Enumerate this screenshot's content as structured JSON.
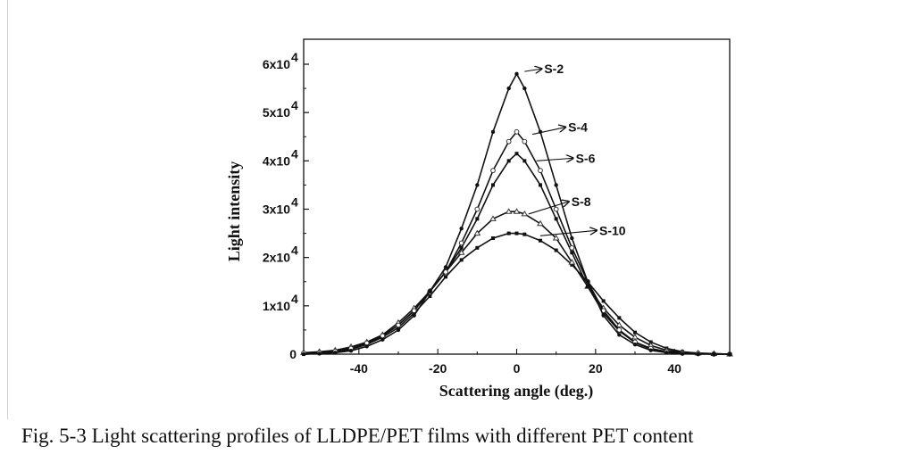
{
  "caption": "Fig. 5-3 Light scattering profiles of LLDPE/PET films with different PET content",
  "chart_data": {
    "type": "line",
    "xlabel": "Scattering angle (deg.)",
    "ylabel": "Light intensity",
    "xlim": [
      -54,
      54
    ],
    "ylim": [
      0,
      65000
    ],
    "x_ticks": [
      {
        "value": -40,
        "label": "-40"
      },
      {
        "value": -20,
        "label": "-20"
      },
      {
        "value": 0,
        "label": "0"
      },
      {
        "value": 20,
        "label": "20"
      },
      {
        "value": 40,
        "label": "40"
      }
    ],
    "y_ticks": [
      {
        "value": 0,
        "label": "0",
        "mantissa": "",
        "exponent": ""
      },
      {
        "value": 10000,
        "label": "1x10^4",
        "mantissa": "1x10",
        "exponent": "4"
      },
      {
        "value": 20000,
        "label": "2x10^4",
        "mantissa": "2x10",
        "exponent": "4"
      },
      {
        "value": 30000,
        "label": "3x10^4",
        "mantissa": "3x10",
        "exponent": "4"
      },
      {
        "value": 40000,
        "label": "4x10^4",
        "mantissa": "4x10",
        "exponent": "4"
      },
      {
        "value": 50000,
        "label": "5x10^4",
        "mantissa": "5x10",
        "exponent": "4"
      },
      {
        "value": 60000,
        "label": "6x10^4",
        "mantissa": "6x10",
        "exponent": "4"
      }
    ],
    "x": [
      -54,
      -50,
      -46,
      -42,
      -38,
      -34,
      -30,
      -26,
      -22,
      -18,
      -14,
      -10,
      -6,
      -2,
      0,
      2,
      6,
      10,
      14,
      18,
      22,
      26,
      30,
      34,
      38,
      42,
      46,
      50,
      54
    ],
    "series": [
      {
        "name": "S-2",
        "marker": "filled-circle",
        "values": [
          0,
          100,
          300,
          700,
          1600,
          3000,
          5000,
          8000,
          13000,
          18000,
          26000,
          35000,
          46000,
          55000,
          58000,
          55000,
          46000,
          35000,
          24000,
          15000,
          8000,
          4000,
          2000,
          800,
          300,
          100,
          0,
          0,
          0
        ]
      },
      {
        "name": "S-4",
        "marker": "open-circle",
        "values": [
          200,
          300,
          600,
          1200,
          2300,
          3800,
          6000,
          9000,
          13000,
          17000,
          23000,
          30000,
          38000,
          44000,
          46000,
          44000,
          38000,
          30000,
          22000,
          15000,
          9000,
          5000,
          2500,
          1200,
          500,
          200,
          100,
          0,
          0
        ]
      },
      {
        "name": "S-6",
        "marker": "filled-square",
        "values": [
          100,
          300,
          600,
          1200,
          2200,
          3800,
          6000,
          9000,
          13000,
          17000,
          22000,
          28000,
          35000,
          40000,
          41500,
          40000,
          35000,
          28000,
          21000,
          14000,
          8500,
          4800,
          2400,
          1100,
          500,
          200,
          100,
          0,
          0
        ]
      },
      {
        "name": "S-8",
        "marker": "open-triangle",
        "values": [
          300,
          500,
          800,
          1500,
          2500,
          4000,
          6500,
          9500,
          13000,
          17000,
          21000,
          25000,
          28000,
          29500,
          29500,
          29000,
          27000,
          24000,
          19000,
          14000,
          9500,
          6000,
          3500,
          1800,
          800,
          400,
          200,
          100,
          0
        ]
      },
      {
        "name": "S-10",
        "marker": "filled-square",
        "values": [
          0,
          200,
          500,
          1000,
          2000,
          3500,
          5500,
          8500,
          12000,
          16000,
          19500,
          22000,
          24000,
          25000,
          25000,
          24800,
          23500,
          21500,
          18500,
          15000,
          11000,
          7500,
          4500,
          2500,
          1200,
          500,
          200,
          100,
          0
        ]
      }
    ],
    "annotations": [
      {
        "text": "S-2",
        "tip_x": 2,
        "tip_y": 58500
      },
      {
        "text": "S-4",
        "tip_x": 4,
        "tip_y": 45500
      },
      {
        "text": "S-6",
        "tip_x": 5,
        "tip_y": 40000
      },
      {
        "text": "S-8",
        "tip_x": 3,
        "tip_y": 29000
      },
      {
        "text": "S-10",
        "tip_x": 6,
        "tip_y": 24500
      }
    ],
    "grid": false,
    "legend": "none"
  }
}
